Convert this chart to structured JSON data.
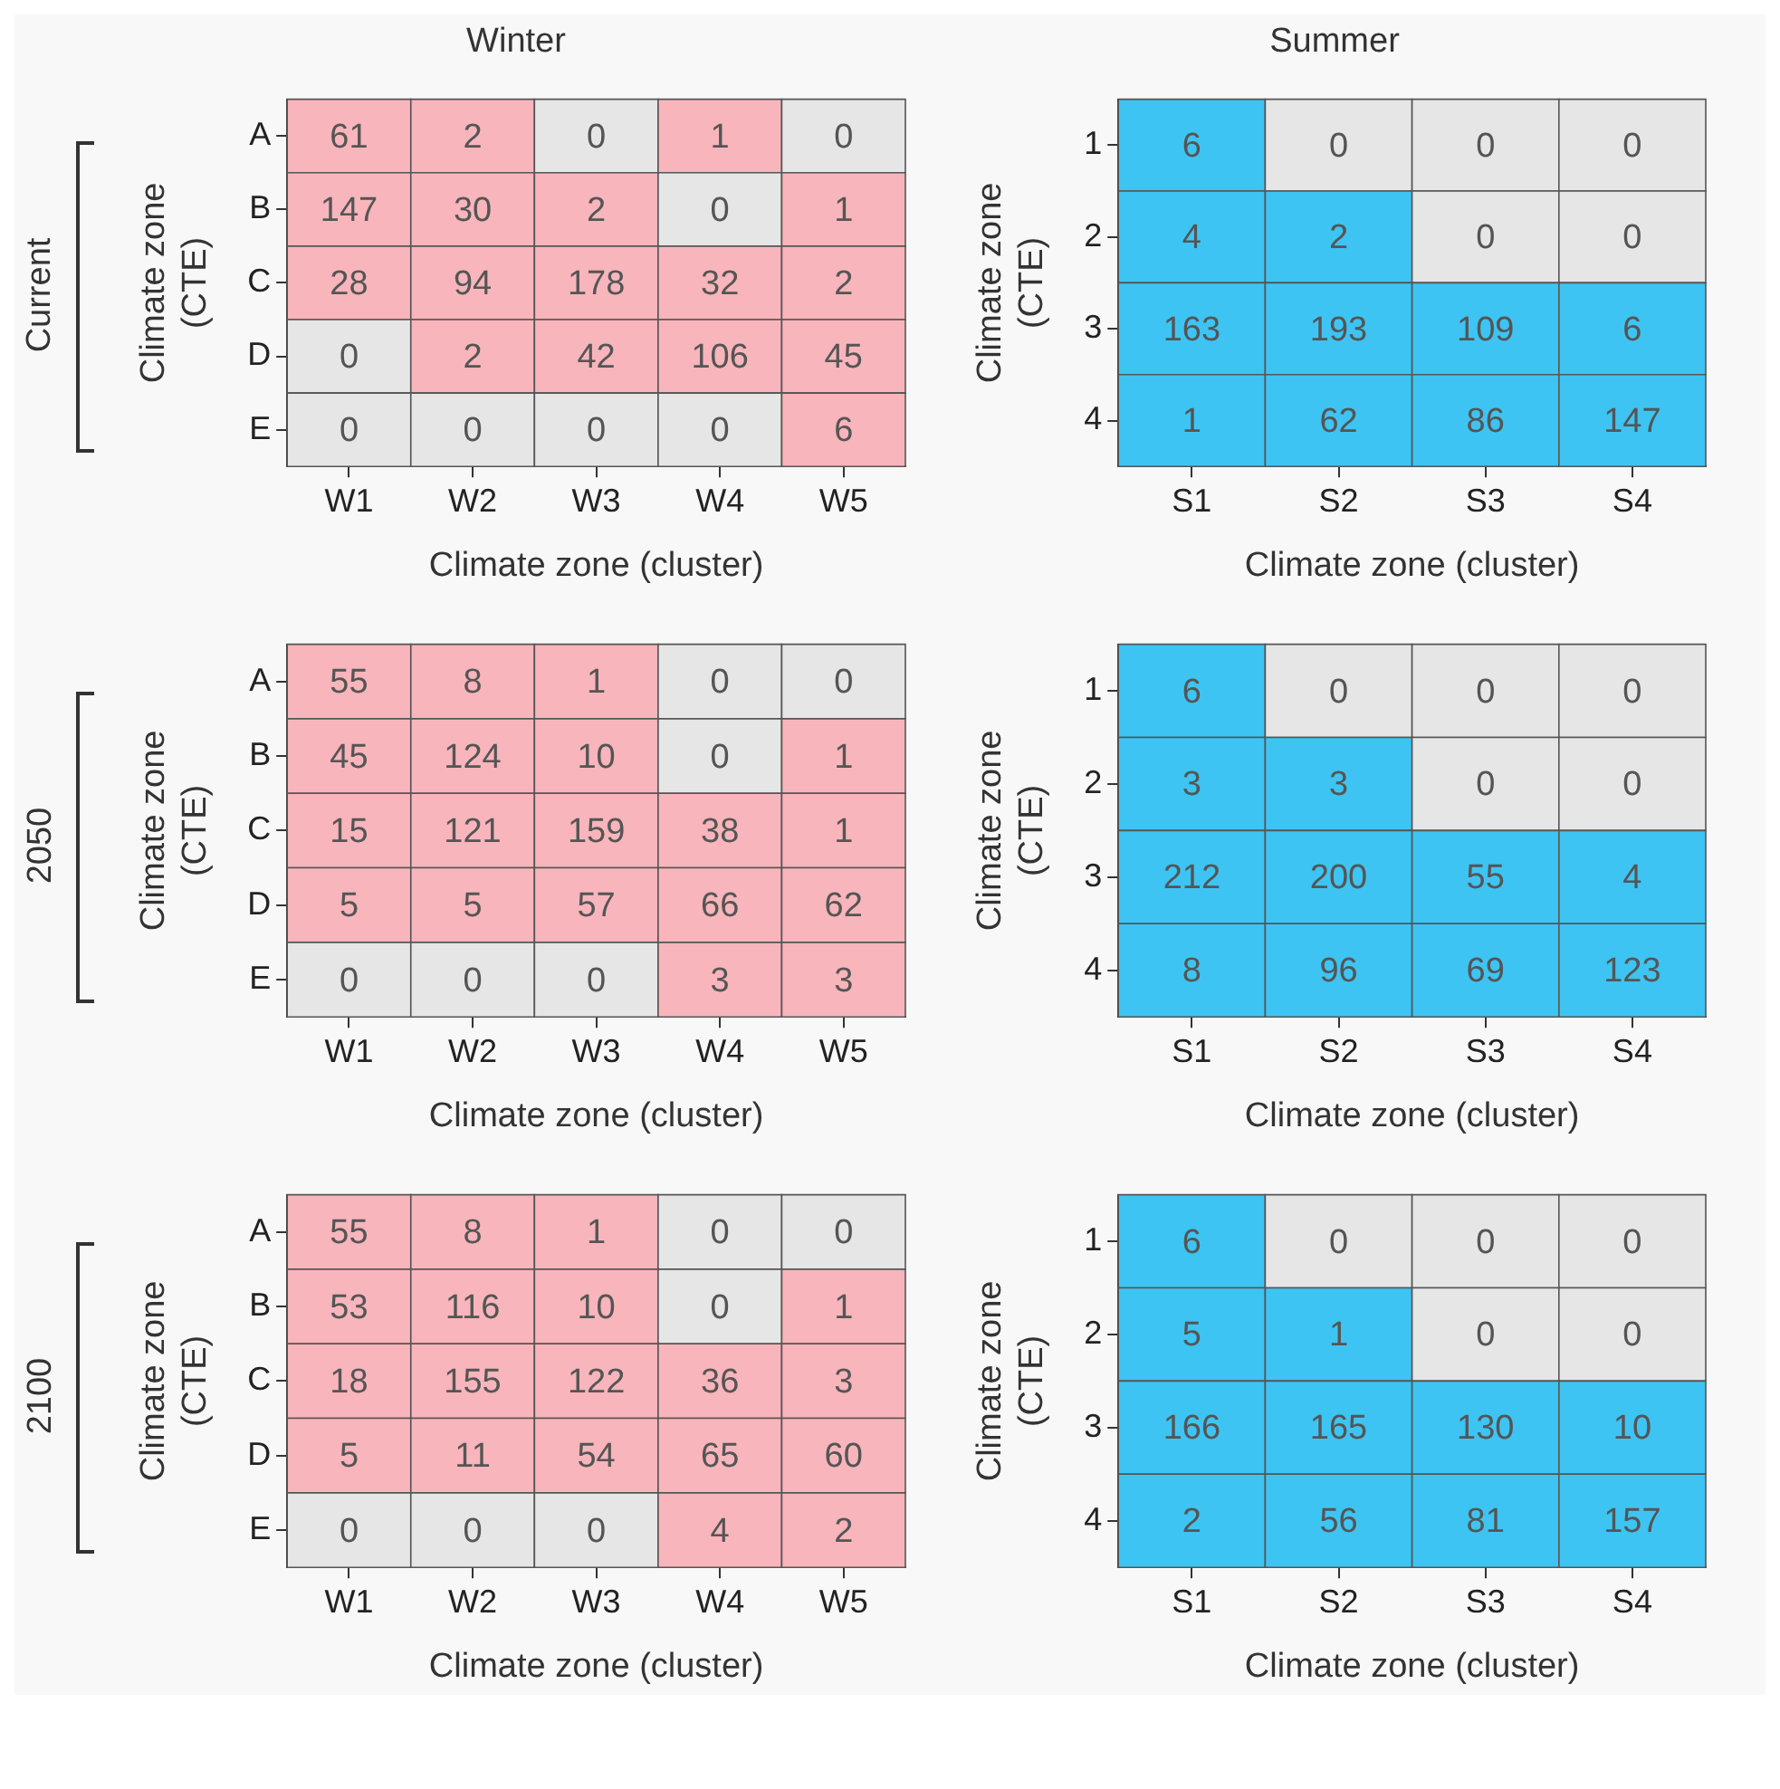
{
  "chart_data": [
    {
      "type": "heatmap",
      "title": "Winter",
      "annotations": [
        "Current"
      ],
      "xlabel": "Climate zone (cluster)",
      "ylabel": "Climate zone (CTE)",
      "categories": [
        "W1",
        "W2",
        "W3",
        "W4",
        "W5"
      ],
      "y_categories": [
        "A",
        "B",
        "C",
        "D",
        "E"
      ],
      "color": "#f8b5bc",
      "data_labels": true,
      "cells": [
        [
          61,
          2,
          0,
          1,
          0
        ],
        [
          147,
          30,
          2,
          0,
          1
        ],
        [
          28,
          94,
          178,
          32,
          2
        ],
        [
          0,
          2,
          42,
          106,
          45
        ],
        [
          0,
          0,
          0,
          0,
          6
        ]
      ]
    },
    {
      "type": "heatmap",
      "title": "Summer",
      "xlabel": "Climate zone (cluster)",
      "ylabel": "Climate zone (CTE)",
      "categories": [
        "S1",
        "S2",
        "S3",
        "S4"
      ],
      "y_categories": [
        "1",
        "2",
        "3",
        "4"
      ],
      "color": "#3ec4f2",
      "data_labels": true,
      "cells": [
        [
          6,
          0,
          0,
          0
        ],
        [
          4,
          2,
          0,
          0
        ],
        [
          163,
          193,
          109,
          6
        ],
        [
          1,
          62,
          86,
          147
        ]
      ]
    },
    {
      "type": "heatmap",
      "annotations": [
        "2050"
      ],
      "xlabel": "Climate zone (cluster)",
      "ylabel": "Climate zone (CTE)",
      "categories": [
        "W1",
        "W2",
        "W3",
        "W4",
        "W5"
      ],
      "y_categories": [
        "A",
        "B",
        "C",
        "D",
        "E"
      ],
      "color": "#f8b5bc",
      "data_labels": true,
      "cells": [
        [
          55,
          8,
          1,
          0,
          0
        ],
        [
          45,
          124,
          10,
          0,
          1
        ],
        [
          15,
          121,
          159,
          38,
          1
        ],
        [
          5,
          5,
          57,
          66,
          62
        ],
        [
          0,
          0,
          0,
          3,
          3
        ]
      ]
    },
    {
      "type": "heatmap",
      "xlabel": "Climate zone (cluster)",
      "ylabel": "Climate zone (CTE)",
      "categories": [
        "S1",
        "S2",
        "S3",
        "S4"
      ],
      "y_categories": [
        "1",
        "2",
        "3",
        "4"
      ],
      "color": "#3ec4f2",
      "data_labels": true,
      "cells": [
        [
          6,
          0,
          0,
          0
        ],
        [
          3,
          3,
          0,
          0
        ],
        [
          212,
          200,
          55,
          4
        ],
        [
          8,
          96,
          69,
          123
        ]
      ]
    },
    {
      "type": "heatmap",
      "annotations": [
        "2100"
      ],
      "xlabel": "Climate zone (cluster)",
      "ylabel": "Climate zone (CTE)",
      "categories": [
        "W1",
        "W2",
        "W3",
        "W4",
        "W5"
      ],
      "y_categories": [
        "A",
        "B",
        "C",
        "D",
        "E"
      ],
      "color": "#f8b5bc",
      "data_labels": true,
      "cells": [
        [
          55,
          8,
          1,
          0,
          0
        ],
        [
          53,
          116,
          10,
          0,
          1
        ],
        [
          18,
          155,
          122,
          36,
          3
        ],
        [
          5,
          11,
          54,
          65,
          60
        ],
        [
          0,
          0,
          0,
          4,
          2
        ]
      ]
    },
    {
      "type": "heatmap",
      "xlabel": "Climate zone (cluster)",
      "ylabel": "Climate zone (CTE)",
      "categories": [
        "S1",
        "S2",
        "S3",
        "S4"
      ],
      "y_categories": [
        "1",
        "2",
        "3",
        "4"
      ],
      "color": "#3ec4f2",
      "data_labels": true,
      "cells": [
        [
          6,
          0,
          0,
          0
        ],
        [
          5,
          1,
          0,
          0
        ],
        [
          166,
          165,
          130,
          10
        ],
        [
          2,
          56,
          81,
          157
        ]
      ]
    }
  ]
}
